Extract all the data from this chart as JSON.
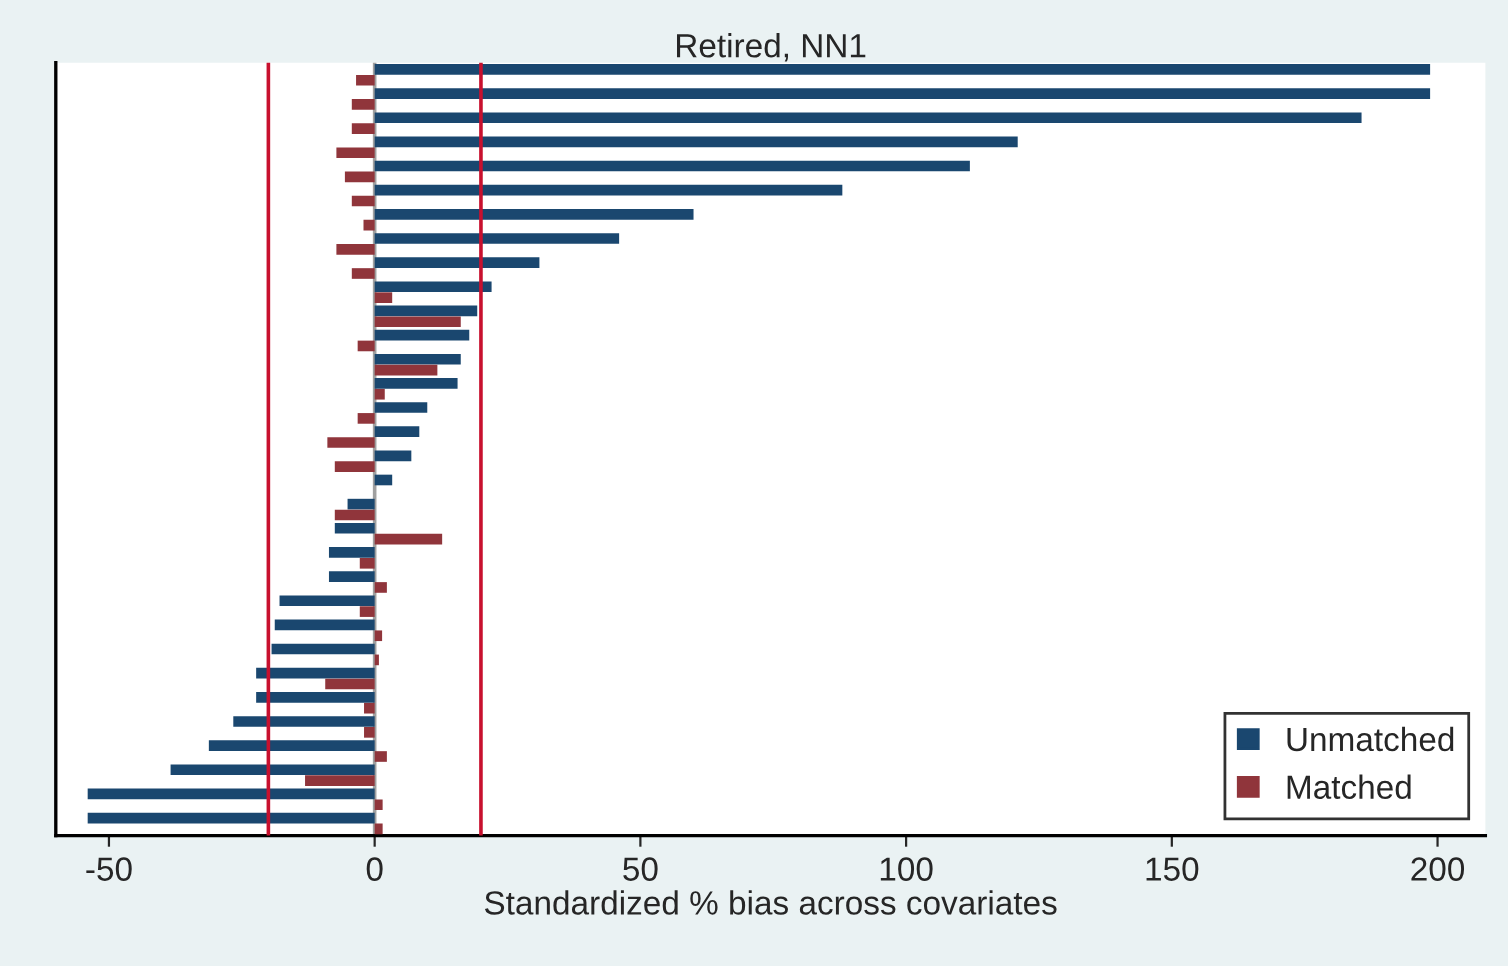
{
  "chart_data": {
    "type": "bar",
    "orientation": "horizontal",
    "title": "Retired, NN1",
    "xlabel": "Standardized % bias across covariates",
    "categories": [
      null,
      null,
      null,
      null,
      null,
      null,
      null,
      null,
      null,
      null,
      null,
      null,
      null,
      null,
      null,
      null,
      null,
      null,
      null,
      null,
      null,
      null,
      null,
      null,
      null,
      null,
      null,
      null,
      null,
      null,
      null,
      null
    ],
    "series": [
      {
        "name": "Unmatched",
        "color": "#1a476f",
        "values": [
          198.6,
          198.6,
          185.7,
          121,
          112,
          88,
          60,
          46,
          31,
          22,
          19.3,
          17.8,
          16.2,
          15.6,
          9.9,
          8.4,
          6.9,
          3.3,
          -5.1,
          -7.5,
          -8.6,
          -8.6,
          -17.9,
          -18.8,
          -19.4,
          -22.3,
          -22.3,
          -26.6,
          -31.2,
          -38.4,
          -54,
          -54
        ]
      },
      {
        "name": "Matched",
        "color": "#90353b",
        "values": [
          -3.5,
          -4.3,
          -4.3,
          -7.2,
          -5.6,
          -4.3,
          -2.1,
          -7.2,
          -4.3,
          3.3,
          16.2,
          -3.2,
          11.8,
          1.9,
          -3.2,
          -8.9,
          -7.5,
          null,
          -7.5,
          12.7,
          -2.8,
          2.3,
          -2.8,
          1.4,
          0.8,
          -9.3,
          -2.0,
          -2.0,
          2.3,
          -13.1,
          1.5,
          1.5
        ]
      }
    ],
    "xlim": [
      -60,
      209
    ],
    "xticks": [
      -50,
      0,
      50,
      100,
      150,
      200
    ],
    "ref_lines": [
      {
        "axis": "x",
        "value": -20,
        "color": "#c8102e"
      },
      {
        "axis": "x",
        "value": 20,
        "color": "#c8102e"
      },
      {
        "axis": "x",
        "value": 0,
        "color": "#a0a0a0"
      }
    ],
    "tick_labels": "x",
    "legend": "bottom right",
    "grid": false
  }
}
